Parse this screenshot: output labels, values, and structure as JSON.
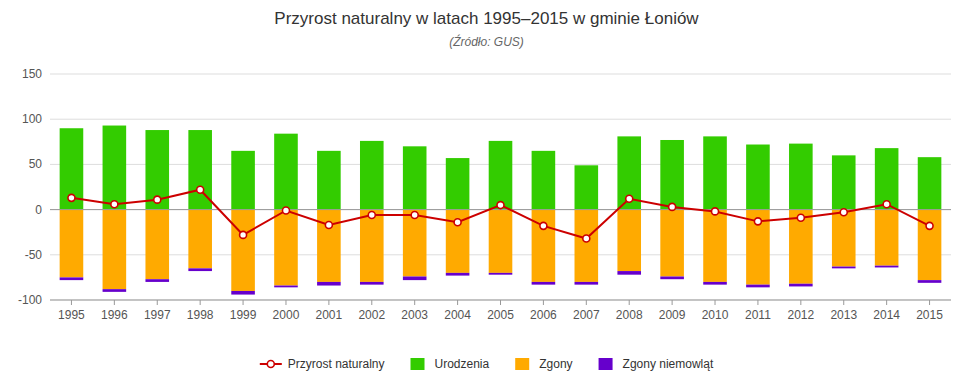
{
  "chart_data": {
    "type": "bar",
    "title": "Przyrost naturalny w latach 1995–2015 w gminie Łoniów",
    "subtitle": "(Źródło: GUS)",
    "categories": [
      "1995",
      "1996",
      "1997",
      "1998",
      "1999",
      "2000",
      "2001",
      "2002",
      "2003",
      "2004",
      "2005",
      "2006",
      "2007",
      "2008",
      "2009",
      "2010",
      "2011",
      "2012",
      "2013",
      "2014",
      "2015"
    ],
    "series": [
      {
        "name": "Przyrost naturalny",
        "type": "line",
        "color": "#cc0000",
        "marker": "circle",
        "values": [
          13,
          6,
          11,
          22,
          -28,
          -1,
          -17,
          -6,
          -6,
          -14,
          5,
          -18,
          -32,
          12,
          3,
          -2,
          -13,
          -9,
          -3,
          6,
          -18
        ]
      },
      {
        "name": "Urodzenia",
        "type": "bar",
        "color": "#33cc00",
        "values": [
          90,
          93,
          88,
          88,
          65,
          84,
          65,
          76,
          70,
          57,
          76,
          65,
          49,
          81,
          77,
          81,
          72,
          73,
          60,
          68,
          58
        ]
      },
      {
        "name": "Zgony",
        "type": "bar",
        "color": "#ffaa00",
        "values": [
          -75,
          -88,
          -77,
          -65,
          -90,
          -84,
          -80,
          -80,
          -74,
          -70,
          -70,
          -80,
          -80,
          -68,
          -74,
          -80,
          -83,
          -82,
          -63,
          -62,
          -78
        ]
      },
      {
        "name": "Zgony niemowląt",
        "type": "bar",
        "color": "#6600cc",
        "values": [
          -3,
          -3,
          -3,
          -3,
          -4,
          -2,
          -4,
          -3,
          -4,
          -3,
          -2,
          -3,
          -3,
          -4,
          -3,
          -3,
          -3,
          -3,
          -2,
          -2,
          -3
        ]
      }
    ],
    "stacked": true,
    "ylim": [
      -100,
      150
    ],
    "yticks": [
      -100,
      -50,
      0,
      50,
      100,
      150
    ],
    "grid": true,
    "legend": "bottom"
  }
}
